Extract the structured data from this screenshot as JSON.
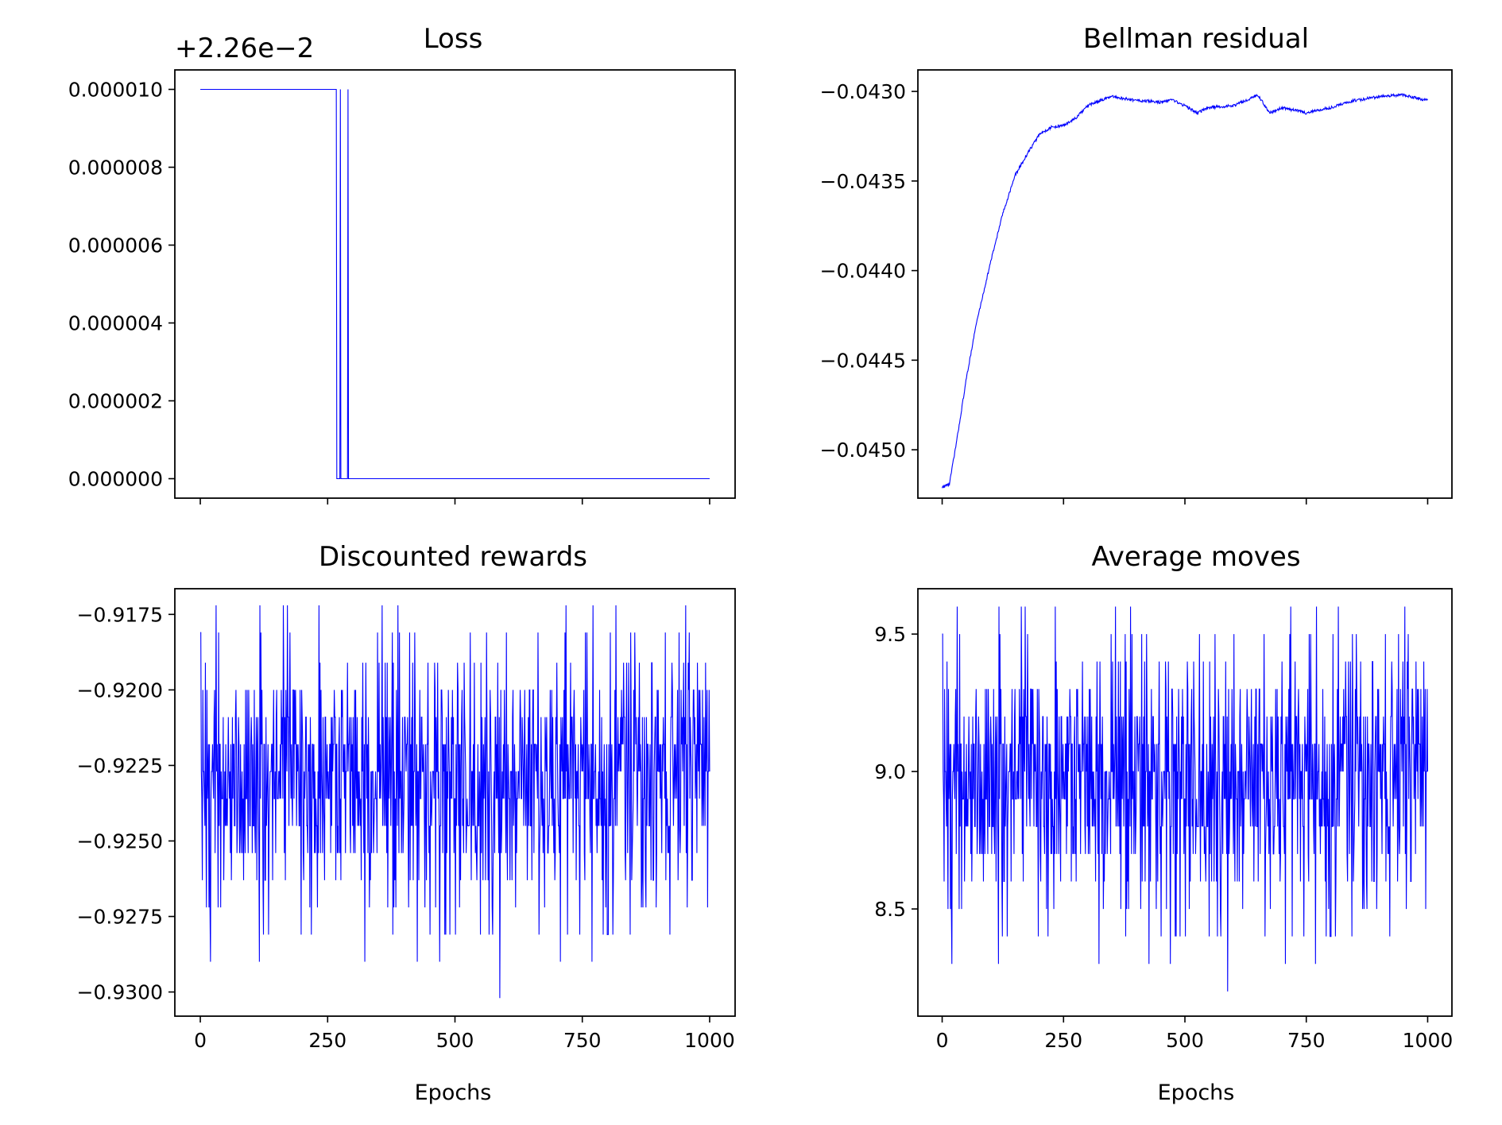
{
  "line_color": "#0000ff",
  "chart_data": [
    {
      "type": "line",
      "title": "Loss",
      "xlabel": "",
      "ylabel": "",
      "offset_text": "+2.26e−2",
      "xlim": [
        -50,
        1050
      ],
      "ylim": [
        -5e-07,
        1.05e-05
      ],
      "xticks": [
        0,
        250,
        500,
        750,
        1000
      ],
      "show_xtick_labels": false,
      "yticks": [
        0,
        2e-06,
        4e-06,
        6e-06,
        8e-06,
        1e-05
      ],
      "ytick_labels": [
        "0.000000",
        "0.000002",
        "0.000004",
        "0.000006",
        "0.000008",
        "0.000010"
      ],
      "grid": false,
      "series": [
        {
          "kind": "step",
          "x_range": [
            0,
            1000
          ],
          "base_value": 1e-05,
          "drop_x": 268,
          "low_value": 0,
          "spikes": [
            {
              "x": 275,
              "value": 1e-05
            },
            {
              "x": 290,
              "value": 1e-05
            }
          ]
        }
      ]
    },
    {
      "type": "line",
      "title": "Bellman residual",
      "xlabel": "",
      "ylabel": "",
      "xlim": [
        -50,
        1050
      ],
      "ylim": [
        -0.04527,
        -0.04288
      ],
      "xticks": [
        0,
        250,
        500,
        750,
        1000
      ],
      "show_xtick_labels": false,
      "yticks": [
        -0.045,
        -0.0445,
        -0.044,
        -0.0435,
        -0.043
      ],
      "ytick_labels": [
        "−0.0450",
        "−0.0445",
        "−0.0440",
        "−0.0435",
        "−0.0430"
      ],
      "grid": false,
      "series": [
        {
          "kind": "keypoints",
          "x_range": [
            0,
            1000
          ],
          "keypoints": [
            [
              0,
              -0.04521
            ],
            [
              15,
              -0.04519
            ],
            [
              30,
              -0.04495
            ],
            [
              50,
              -0.0446
            ],
            [
              70,
              -0.0443
            ],
            [
              100,
              -0.04395
            ],
            [
              125,
              -0.04368
            ],
            [
              150,
              -0.04347
            ],
            [
              175,
              -0.04335
            ],
            [
              200,
              -0.04324
            ],
            [
              225,
              -0.0432
            ],
            [
              250,
              -0.04319
            ],
            [
              275,
              -0.04315
            ],
            [
              300,
              -0.04308
            ],
            [
              325,
              -0.04305
            ],
            [
              350,
              -0.04303
            ],
            [
              400,
              -0.04305
            ],
            [
              450,
              -0.04306
            ],
            [
              475,
              -0.04305
            ],
            [
              500,
              -0.04308
            ],
            [
              525,
              -0.04312
            ],
            [
              550,
              -0.04309
            ],
            [
              600,
              -0.04308
            ],
            [
              650,
              -0.04302
            ],
            [
              675,
              -0.04312
            ],
            [
              700,
              -0.04309
            ],
            [
              750,
              -0.04312
            ],
            [
              800,
              -0.04309
            ],
            [
              850,
              -0.04305
            ],
            [
              900,
              -0.04303
            ],
            [
              950,
              -0.04302
            ],
            [
              1000,
              -0.04305
            ]
          ],
          "noise": 8e-06
        }
      ]
    },
    {
      "type": "line",
      "title": "Discounted rewards",
      "xlabel": "Epochs",
      "ylabel": "",
      "xlim": [
        -50,
        1050
      ],
      "ylim": [
        -0.9308,
        -0.91665
      ],
      "xticks": [
        0,
        250,
        500,
        750,
        1000
      ],
      "show_xtick_labels": true,
      "xtick_labels": [
        "0",
        "250",
        "500",
        "750",
        "1000"
      ],
      "yticks": [
        -0.93,
        -0.9275,
        -0.925,
        -0.9225,
        -0.92,
        -0.9175
      ],
      "ytick_labels": [
        "−0.9300",
        "−0.9275",
        "−0.9250",
        "−0.9225",
        "−0.9200",
        "−0.9175"
      ],
      "grid": false,
      "series": [
        {
          "kind": "noisy",
          "x_range": [
            0,
            1000
          ],
          "mean": -0.9236,
          "levels": [
            -0.9172,
            -0.9181,
            -0.9191,
            -0.92,
            -0.9209,
            -0.9218,
            -0.9227,
            -0.9236,
            -0.9245,
            -0.9254,
            -0.9263,
            -0.9272,
            -0.9281,
            -0.929
          ],
          "weights": [
            1,
            2,
            4,
            9,
            14,
            17,
            18,
            16,
            13,
            9,
            6,
            3,
            2,
            1
          ],
          "min_value": -0.9302,
          "min_x": 588
        }
      ]
    },
    {
      "type": "line",
      "title": "Average moves",
      "xlabel": "Epochs",
      "ylabel": "",
      "xlim": [
        -50,
        1050
      ],
      "ylim": [
        8.11,
        9.665
      ],
      "xticks": [
        0,
        250,
        500,
        750,
        1000
      ],
      "show_xtick_labels": true,
      "xtick_labels": [
        "0",
        "250",
        "500",
        "750",
        "1000"
      ],
      "yticks": [
        8.5,
        9.0,
        9.5
      ],
      "ytick_labels": [
        "8.5",
        "9.0",
        "9.5"
      ],
      "grid": false,
      "series": [
        {
          "kind": "noisy",
          "x_range": [
            0,
            1000
          ],
          "mean": 8.86,
          "levels": [
            9.6,
            9.5,
            9.4,
            9.3,
            9.2,
            9.1,
            9.0,
            8.9,
            8.8,
            8.7,
            8.6,
            8.5,
            8.4,
            8.3
          ],
          "weights": [
            1,
            2,
            4,
            9,
            14,
            17,
            18,
            16,
            13,
            9,
            6,
            3,
            2,
            1
          ],
          "min_value": 8.2,
          "min_x": 588
        }
      ]
    }
  ]
}
